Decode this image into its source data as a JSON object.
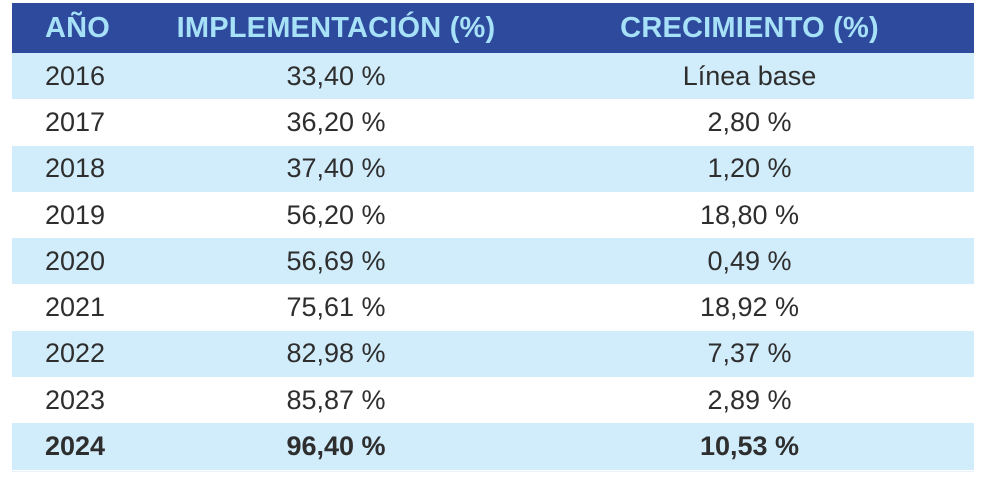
{
  "chart_data": {
    "type": "table",
    "columns": [
      "AÑO",
      "IMPLEMENTACIÓN (%)",
      "CRECIMIENTO (%)"
    ],
    "rows": [
      [
        "2016",
        "33,40 %",
        "Línea base"
      ],
      [
        "2017",
        "36,20 %",
        "2,80 %"
      ],
      [
        "2018",
        "37,40 %",
        "1,20 %"
      ],
      [
        "2019",
        "56,20 %",
        "18,80 %"
      ],
      [
        "2020",
        "56,69 %",
        "0,49 %"
      ],
      [
        "2021",
        "75,61 %",
        "18,92 %"
      ],
      [
        "2022",
        "82,98 %",
        "7,37 %"
      ],
      [
        "2023",
        "85,87 %",
        "2,89 %"
      ],
      [
        "2024",
        "96,40 %",
        "10,53 %"
      ]
    ],
    "highlight_row": "2024",
    "colors": {
      "header_bg": "#2d4a9c",
      "header_text": "#a7e1f8",
      "stripe": "#d1ecfa",
      "row_plain": "#ffffff",
      "text": "#2e2e2e"
    }
  }
}
